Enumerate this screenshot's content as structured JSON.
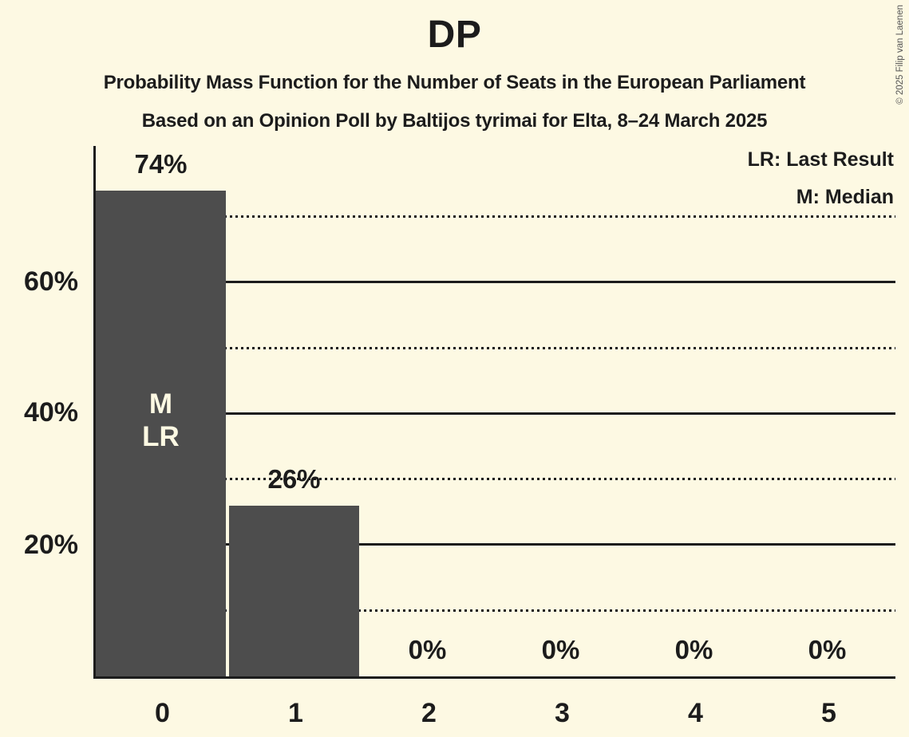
{
  "title": "DP",
  "subtitles": [
    "Probability Mass Function for the Number of Seats in the European Parliament",
    "Based on an Opinion Poll by Baltijos tyrimai for Elta, 8–24 March 2025"
  ],
  "copyright": "© 2025 Filip van Laenen",
  "legend": {
    "lr": "LR: Last Result",
    "m": "M: Median"
  },
  "colors": {
    "background": "#FDF9E3",
    "bar": "#4D4D4D",
    "text": "#1C1C1C",
    "bar_annotation_text": "#FDF9E3"
  },
  "y_axis": {
    "tick_labels": [
      "60%",
      "40%",
      "20%"
    ],
    "tick_values": [
      60,
      40,
      20
    ]
  },
  "chart_data": {
    "type": "bar",
    "title": "DP",
    "categories": [
      "0",
      "1",
      "2",
      "3",
      "4",
      "5"
    ],
    "values": [
      74,
      26,
      0,
      0,
      0,
      0
    ],
    "value_labels": [
      "74%",
      "26%",
      "0%",
      "0%",
      "0%",
      "0%"
    ],
    "annotations": [
      {
        "category": "0",
        "lines": [
          "M",
          "LR"
        ]
      }
    ],
    "ylim": [
      0,
      80.8
    ],
    "gridlines": {
      "solid": [
        20,
        40,
        60
      ],
      "dotted": [
        10,
        30,
        50,
        70
      ]
    },
    "legend_position": "top-right",
    "grid": true
  }
}
